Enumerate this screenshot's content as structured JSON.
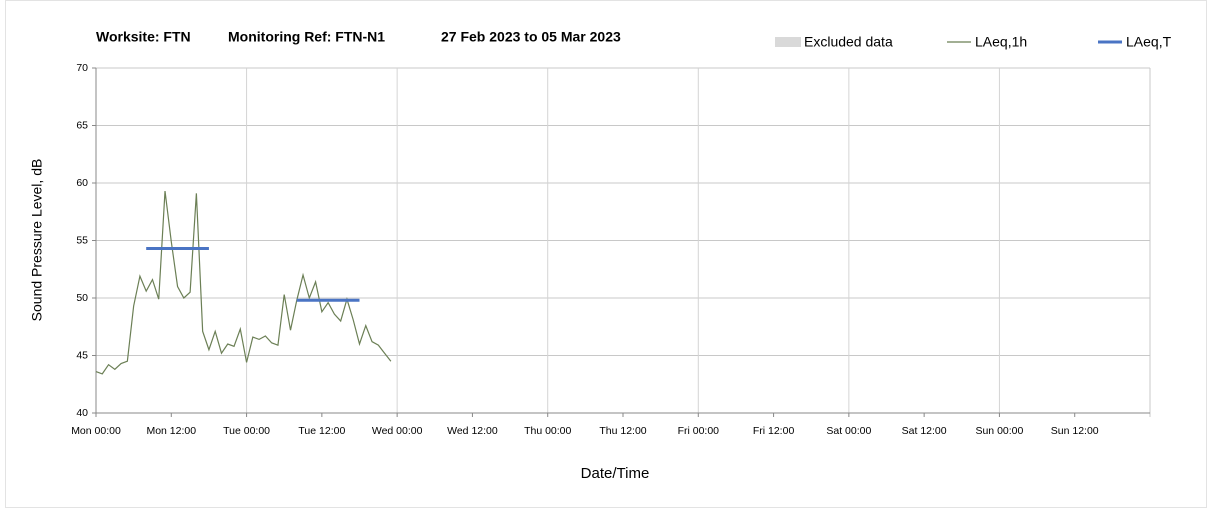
{
  "chart_data": {
    "type": "line",
    "title": [
      "Worksite: FTN",
      "Monitoring Ref: FTN-N1",
      "27 Feb 2023 to 05 Mar 2023"
    ],
    "y_label": "Sound Pressure Level, dB",
    "x_label": "Date/Time",
    "xlim": [
      0,
      168
    ],
    "xticks": [
      {
        "value": 0,
        "label": "Mon 00:00"
      },
      {
        "value": 12,
        "label": "Mon 12:00"
      },
      {
        "value": 24,
        "label": "Tue 00:00"
      },
      {
        "value": 36,
        "label": "Tue 12:00"
      },
      {
        "value": 48,
        "label": "Wed 00:00"
      },
      {
        "value": 60,
        "label": "Wed 12:00"
      },
      {
        "value": 72,
        "label": "Thu 00:00"
      },
      {
        "value": 84,
        "label": "Thu 12:00"
      },
      {
        "value": 96,
        "label": "Fri 00:00"
      },
      {
        "value": 108,
        "label": "Fri 12:00"
      },
      {
        "value": 120,
        "label": "Sat 00:00"
      },
      {
        "value": 132,
        "label": "Sat 12:00"
      },
      {
        "value": 144,
        "label": "Sun 00:00"
      },
      {
        "value": 156,
        "label": "Sun 12:00"
      }
    ],
    "ylim": [
      40,
      70
    ],
    "yticks": [
      40,
      45,
      50,
      55,
      60,
      65,
      70
    ],
    "grid": true,
    "legend": "top-right",
    "excluded": {
      "name": "Excluded data",
      "color": "#d9d9d9"
    },
    "series": [
      {
        "name": "LAeq,1h",
        "color": "#6b7f55",
        "x": [
          0,
          1,
          2,
          3,
          4,
          5,
          6,
          7,
          8,
          9,
          10,
          11,
          12,
          13,
          14,
          15,
          16,
          17,
          18,
          19,
          20,
          21,
          22,
          23,
          24,
          25,
          26,
          27,
          28,
          29,
          30,
          31,
          32,
          33,
          34,
          35,
          36,
          37,
          38,
          39,
          40,
          41,
          42,
          43,
          44,
          45,
          46,
          47
        ],
        "values": [
          43.6,
          43.4,
          44.2,
          43.8,
          44.3,
          44.5,
          49.3,
          51.9,
          50.6,
          51.6,
          49.9,
          59.3,
          54.9,
          51.0,
          50.0,
          50.5,
          59.1,
          47.1,
          45.5,
          47.1,
          45.2,
          46.0,
          45.8,
          47.3,
          44.4,
          46.6,
          46.4,
          46.7,
          46.1,
          45.9,
          50.3,
          47.2,
          49.8,
          52.0,
          50.0,
          51.4,
          48.8,
          49.6,
          48.6,
          48.0,
          49.9,
          48.1,
          46.0,
          47.6,
          46.2,
          45.9,
          45.2,
          44.5
        ]
      },
      {
        "name": "LAeq,T",
        "color": "#4a74c4",
        "segments": [
          {
            "start": 8,
            "end": 18,
            "value": 54.3
          },
          {
            "start": 32,
            "end": 42,
            "value": 49.8
          }
        ]
      }
    ]
  }
}
